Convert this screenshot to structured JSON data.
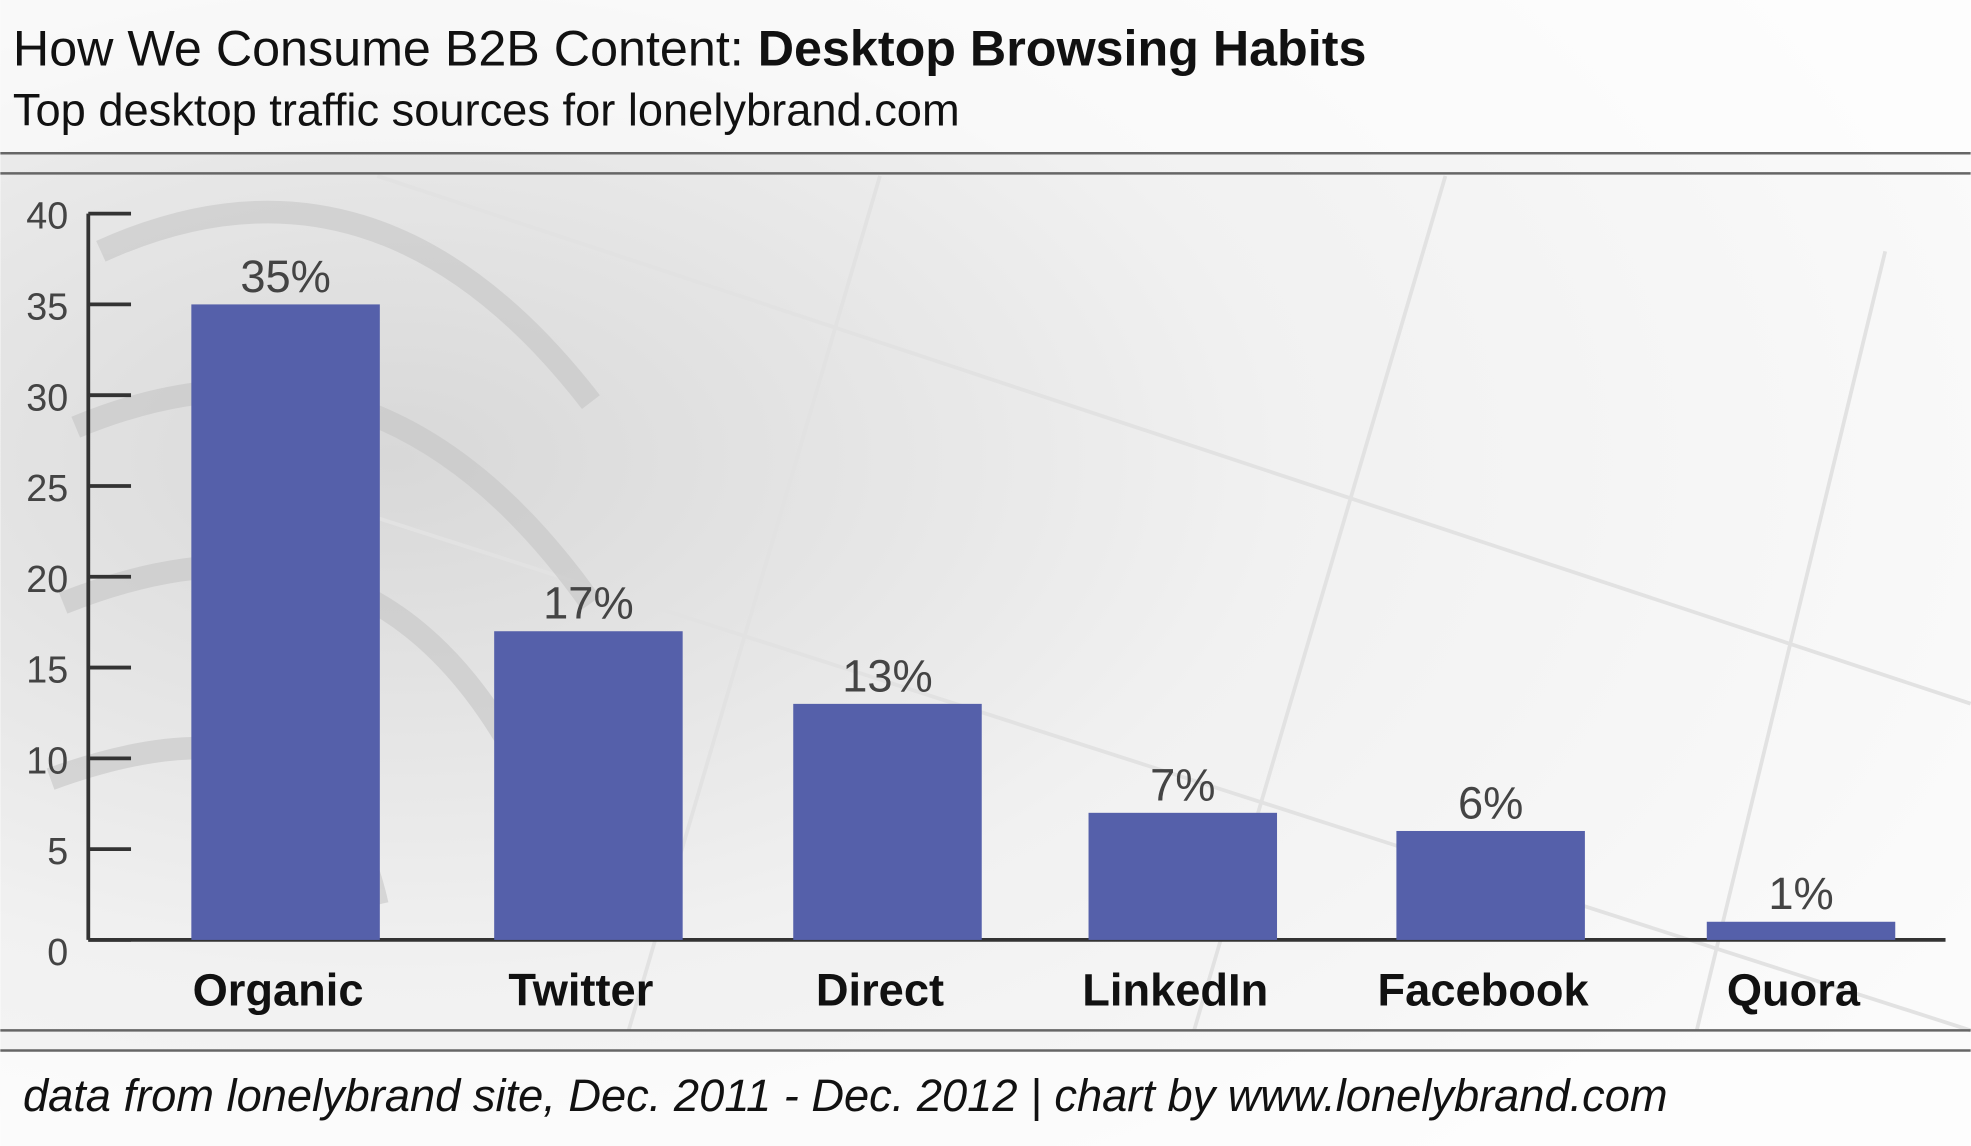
{
  "chart_data": {
    "type": "bar",
    "title": [
      "How We Consume B2B Content:",
      "Desktop Browsing Habits"
    ],
    "subtitle": "Top desktop traffic sources for lonelybrand.com",
    "source": "data from lonelybrand site, Dec. 2011 - Dec. 2012 | chart by www.lonelybrand.com",
    "categories": [
      "Organic",
      "Twitter",
      "Direct",
      "LinkedIn",
      "Facebook",
      "Quora"
    ],
    "values": [
      35,
      17,
      13,
      7,
      6,
      1
    ],
    "value_labels": [
      "35%",
      "17%",
      "13%",
      "7%",
      "6%",
      "1%"
    ],
    "color": "#5560aa",
    "ylim": [
      0,
      40
    ],
    "yticks": [
      0,
      5,
      10,
      15,
      20,
      25,
      30,
      35,
      40
    ],
    "grid": false
  }
}
